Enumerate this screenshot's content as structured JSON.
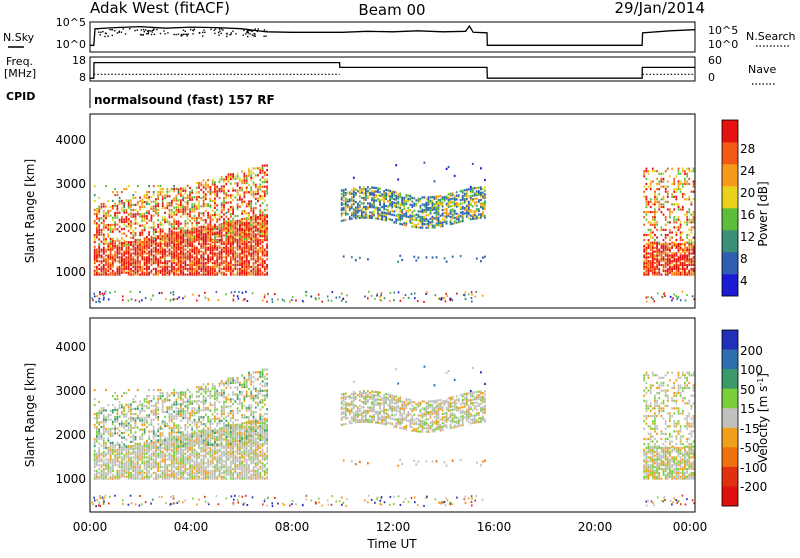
{
  "header": {
    "station": "Adak West (fitACF)",
    "beam": "Beam 00",
    "date": "29/Jan/2014"
  },
  "noise_panel": {
    "left_label": "N.Sky",
    "right_label": "N.Search",
    "left_ticks": [
      "10^5",
      "10^0"
    ],
    "right_ticks": [
      "10^5",
      "10^0"
    ]
  },
  "freq_panel": {
    "left_label": "Freq.",
    "left_unit": "[MHz]",
    "right_label": "Nave",
    "left_ticks": [
      "18",
      "8"
    ],
    "right_ticks": [
      "60",
      "0"
    ]
  },
  "cpid": {
    "label": "CPID",
    "value": "normalsound (fast) 157 RF"
  },
  "axes": {
    "xlabel": "Time UT",
    "ylabel": "Slant Range [km]",
    "x_ticks": [
      "00:00",
      "04:00",
      "08:00",
      "12:00",
      "16:00",
      "20:00",
      "00:00"
    ],
    "y_ticks": [
      "1000",
      "2000",
      "3000",
      "4000"
    ]
  },
  "power_scale": {
    "title": "Power [dB]",
    "ticks": [
      "4",
      "8",
      "12",
      "16",
      "20",
      "24",
      "28"
    ],
    "colors": [
      "#1b1bd6",
      "#2e5fb0",
      "#3a8f7a",
      "#5cbf3c",
      "#e8d21a",
      "#f59a1a",
      "#f05a14",
      "#e61212"
    ]
  },
  "velocity_scale": {
    "title": "Velocity [m s",
    "title_sup": "-1",
    "title_end": "]",
    "ticks": [
      "200",
      "100",
      "50",
      "15",
      "-15",
      "-50",
      "-100",
      "-200"
    ],
    "colors": [
      "#2030b8",
      "#2f6fb0",
      "#3a9a6a",
      "#7ccf3c",
      "#c0c0bc",
      "#f0a01a",
      "#f07010",
      "#e03010",
      "#e01010"
    ]
  },
  "chart_data": {
    "type": "heatmap",
    "x_range_hours": [
      0,
      24
    ],
    "y_range_km": [
      180,
      4600
    ],
    "grid": false,
    "data_gap_hours": [
      15.75,
      21.9
    ],
    "noise_sky_trace": [
      {
        "t": 0,
        "v": 0.9
      },
      {
        "t": 0.15,
        "v": 0.9
      },
      {
        "t": 0.2,
        "v": 4.1
      },
      {
        "t": 1,
        "v": 4.3
      },
      {
        "t": 2,
        "v": 4.5
      },
      {
        "t": 3,
        "v": 4.2
      },
      {
        "t": 4,
        "v": 4.4
      },
      {
        "t": 5,
        "v": 4.3
      },
      {
        "t": 6,
        "v": 4.1
      },
      {
        "t": 7,
        "v": 3.5
      },
      {
        "t": 8,
        "v": 3.4
      },
      {
        "t": 10,
        "v": 3.4
      },
      {
        "t": 11,
        "v": 3.6
      },
      {
        "t": 12,
        "v": 3.5
      },
      {
        "t": 13,
        "v": 3.7
      },
      {
        "t": 14,
        "v": 3.5
      },
      {
        "t": 14.9,
        "v": 3.6
      },
      {
        "t": 15.05,
        "v": 4.6
      },
      {
        "t": 15.2,
        "v": 3.4
      },
      {
        "t": 15.75,
        "v": 3.3
      },
      {
        "t": 15.76,
        "v": 0.9
      },
      {
        "t": 21.9,
        "v": 0.9
      },
      {
        "t": 21.92,
        "v": 3.3
      },
      {
        "t": 23,
        "v": 3.7
      },
      {
        "t": 24,
        "v": 3.9
      }
    ],
    "freq_mhz_trace": [
      {
        "t": 0,
        "v": 8.4
      },
      {
        "t": 0.15,
        "v": 8.4
      },
      {
        "t": 0.16,
        "v": 16.2
      },
      {
        "t": 9.9,
        "v": 16.2
      },
      {
        "t": 9.91,
        "v": 13.8
      },
      {
        "t": 15.75,
        "v": 13.8
      },
      {
        "t": 15.76,
        "v": 8.4
      },
      {
        "t": 21.9,
        "v": 8.4
      },
      {
        "t": 21.91,
        "v": 13.8
      },
      {
        "t": 24,
        "v": 13.8
      }
    ],
    "nave_trace": [
      {
        "t": 0.15,
        "v": 14
      },
      {
        "t": 9.9,
        "v": 14
      },
      {
        "t": 21.92,
        "v": 14
      },
      {
        "t": 24,
        "v": 14
      }
    ]
  }
}
